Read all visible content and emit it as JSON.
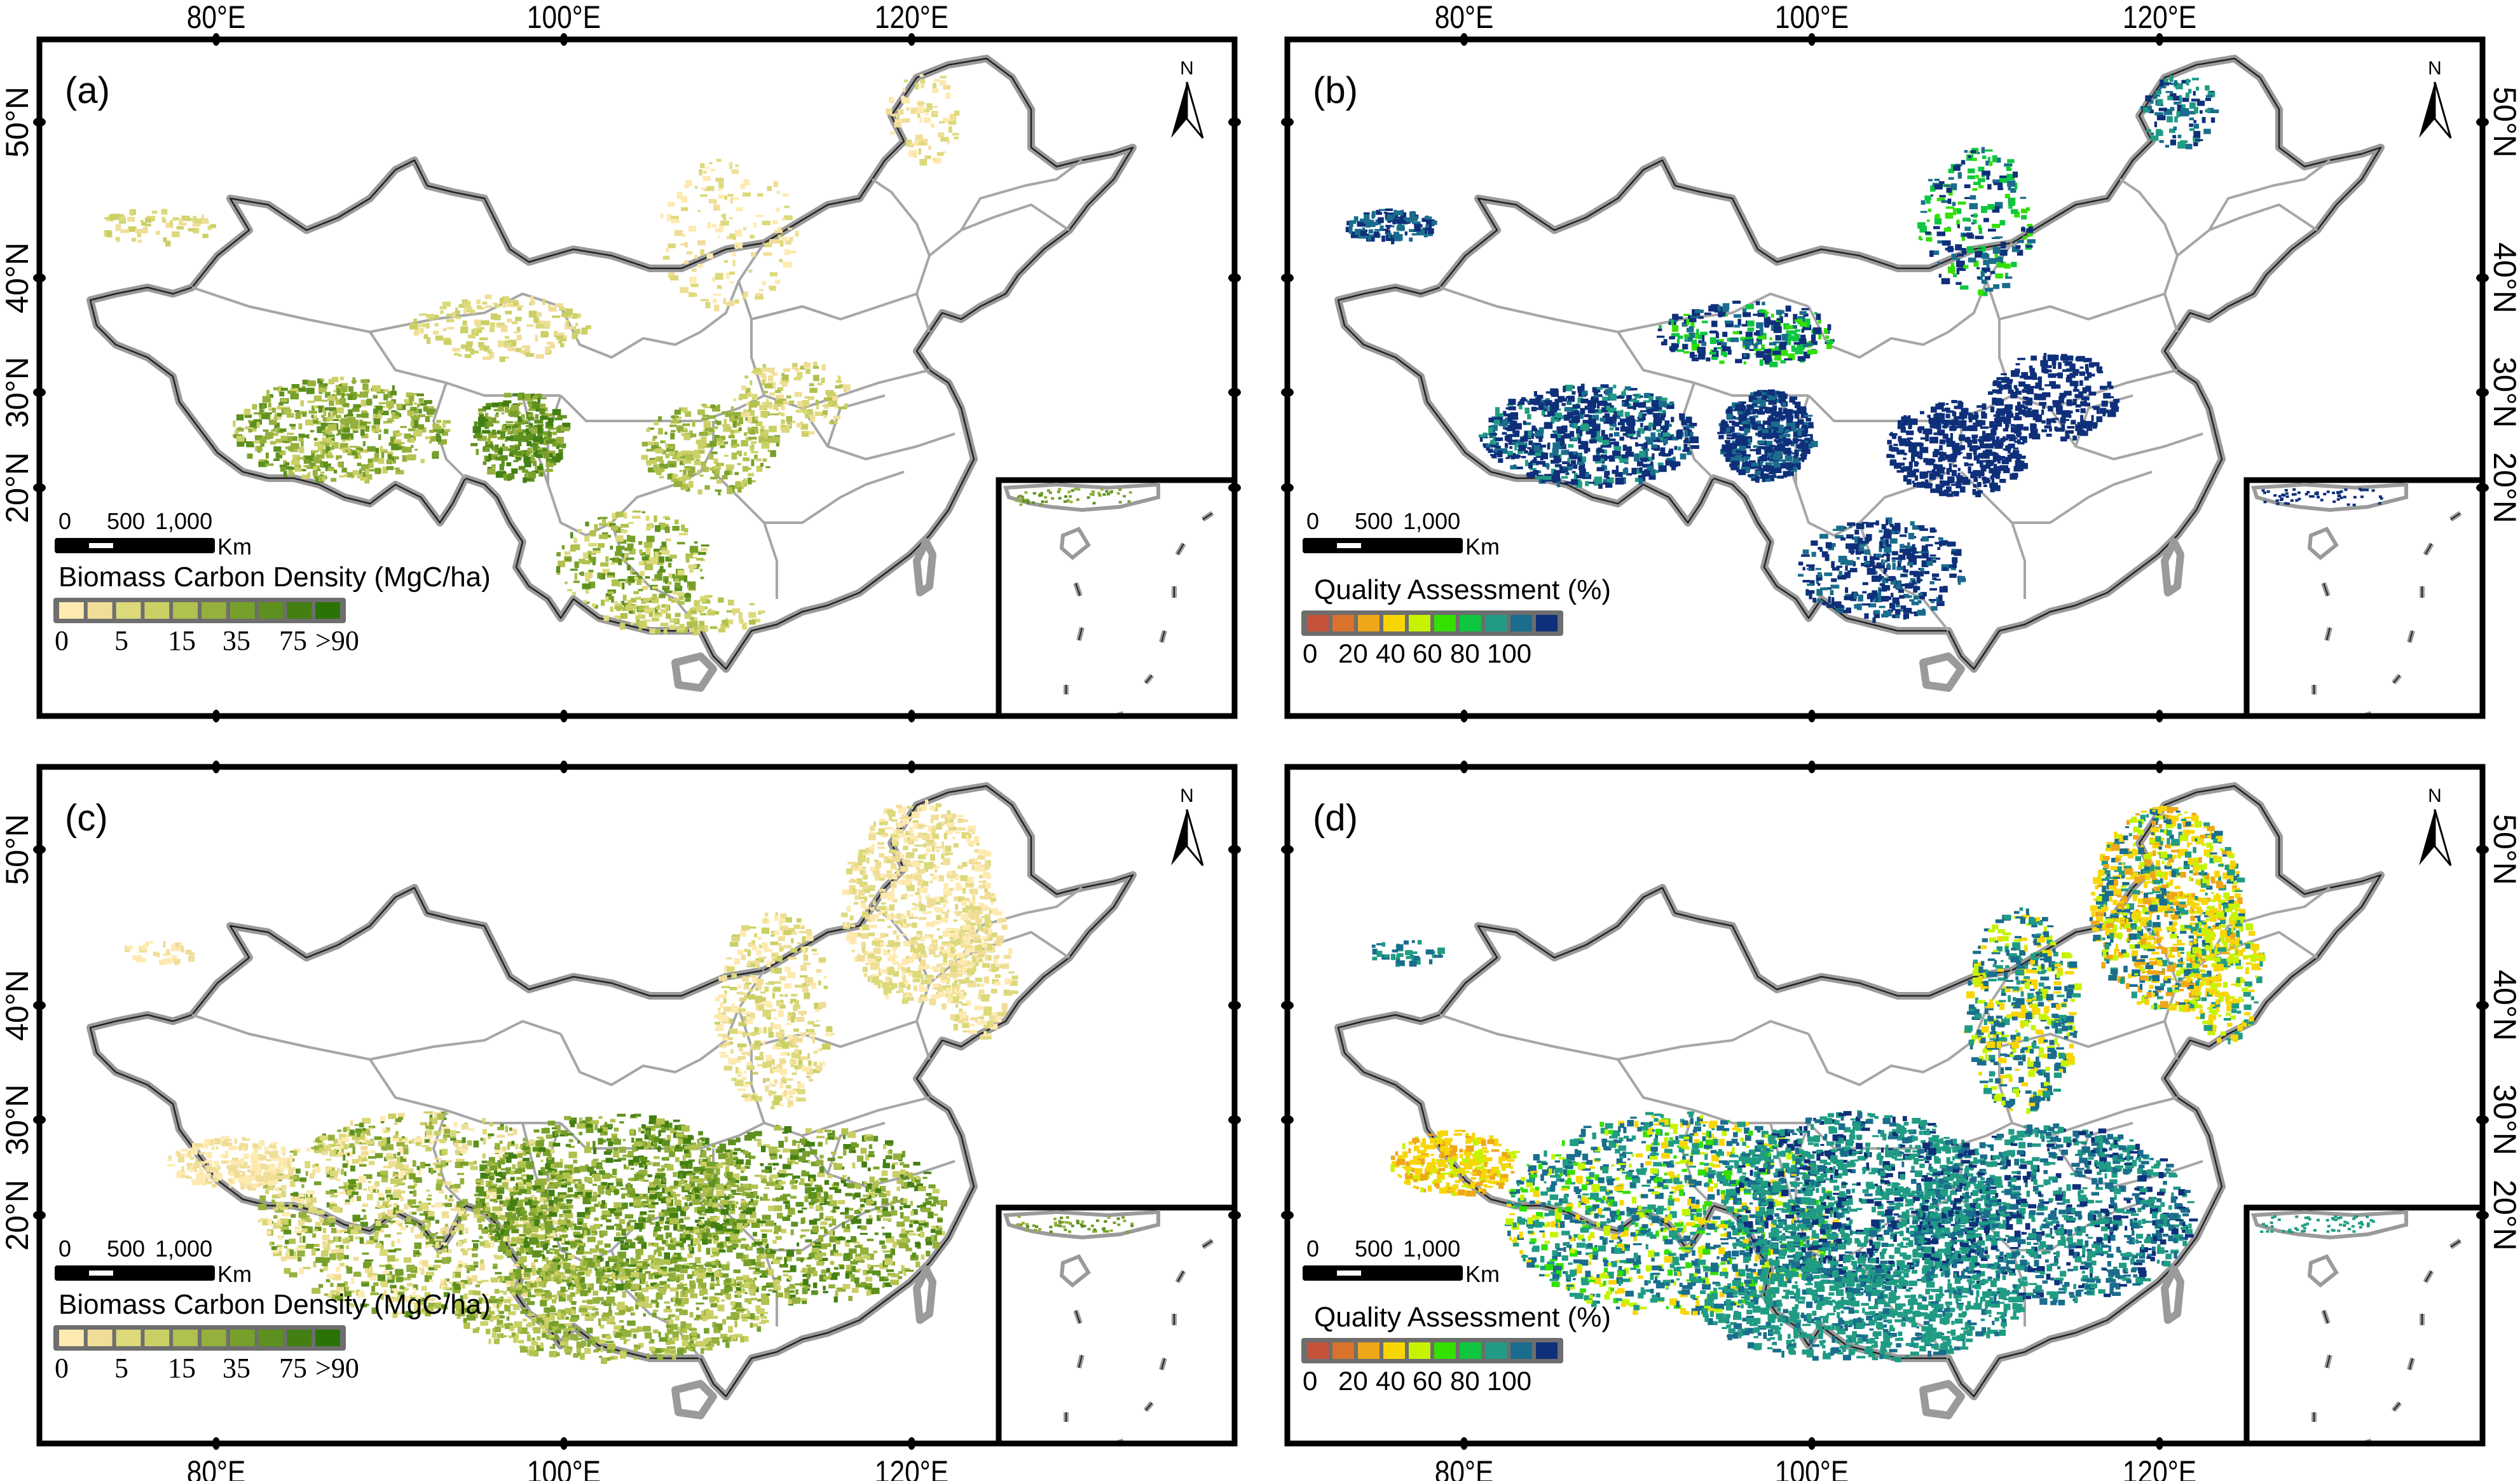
{
  "figure": {
    "panels": [
      {
        "id": "a",
        "label": "(a)",
        "kind": "biomass",
        "legend_title": "Biomass Carbon Density (MgC/ha)",
        "show_top_axis": true,
        "show_bottom_axis": false,
        "show_left_axis": true,
        "show_right_axis": false
      },
      {
        "id": "b",
        "label": "(b)",
        "kind": "quality",
        "legend_title": "Quality Assessment (%)",
        "show_top_axis": true,
        "show_bottom_axis": false,
        "show_left_axis": false,
        "show_right_axis": true
      },
      {
        "id": "c",
        "label": "(c)",
        "kind": "biomass",
        "legend_title": "Biomass Carbon Density (MgC/ha)",
        "show_top_axis": false,
        "show_bottom_axis": true,
        "show_left_axis": true,
        "show_right_axis": false
      },
      {
        "id": "d",
        "label": "(d)",
        "kind": "quality",
        "legend_title": "Quality Assessment (%)",
        "show_top_axis": false,
        "show_bottom_axis": true,
        "show_left_axis": false,
        "show_right_axis": true
      }
    ],
    "longitude_labels": [
      "80°E",
      "100°E",
      "120°E"
    ],
    "latitude_labels": [
      "50°N",
      "40°N",
      "30°N",
      "20°N"
    ],
    "north_arrow_label": "N",
    "scale_bar": {
      "ticks": [
        "0",
        "500",
        "1,000"
      ],
      "unit": "Km"
    },
    "biomass_legend": {
      "title": "Biomass Carbon Density (MgC/ha)",
      "tick_labels": [
        "0",
        "5",
        "15",
        "35",
        "75",
        ">90"
      ],
      "colors": [
        "#feeab0",
        "#f0de98",
        "#dcd97a",
        "#cbd066",
        "#b0c14e",
        "#95b03c",
        "#77a02a",
        "#5d901e",
        "#437f12",
        "#2a7305"
      ]
    },
    "quality_legend": {
      "title": "Quality Assessment (%)",
      "tick_labels": [
        "0",
        "20",
        "40",
        "60",
        "80",
        "100"
      ],
      "colors": [
        "#c6523c",
        "#d9722a",
        "#eea718",
        "#f8d606",
        "#c6f400",
        "#33e000",
        "#0fc640",
        "#209c84",
        "#1a6d8c",
        "#0e2f7a"
      ]
    }
  }
}
